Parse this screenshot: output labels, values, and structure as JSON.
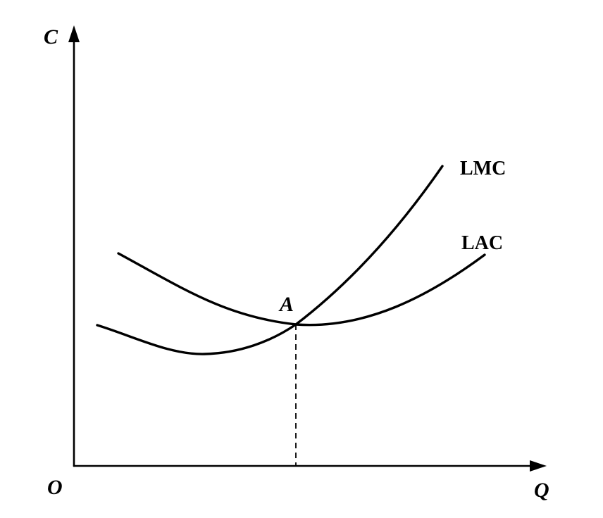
{
  "labels": {
    "y_axis": "C",
    "x_axis": "Q",
    "origin": "O",
    "point": "A",
    "lmc": "LMC",
    "lac": "LAC"
  },
  "colors": {
    "ink": "#000000",
    "background": "#ffffff"
  }
}
